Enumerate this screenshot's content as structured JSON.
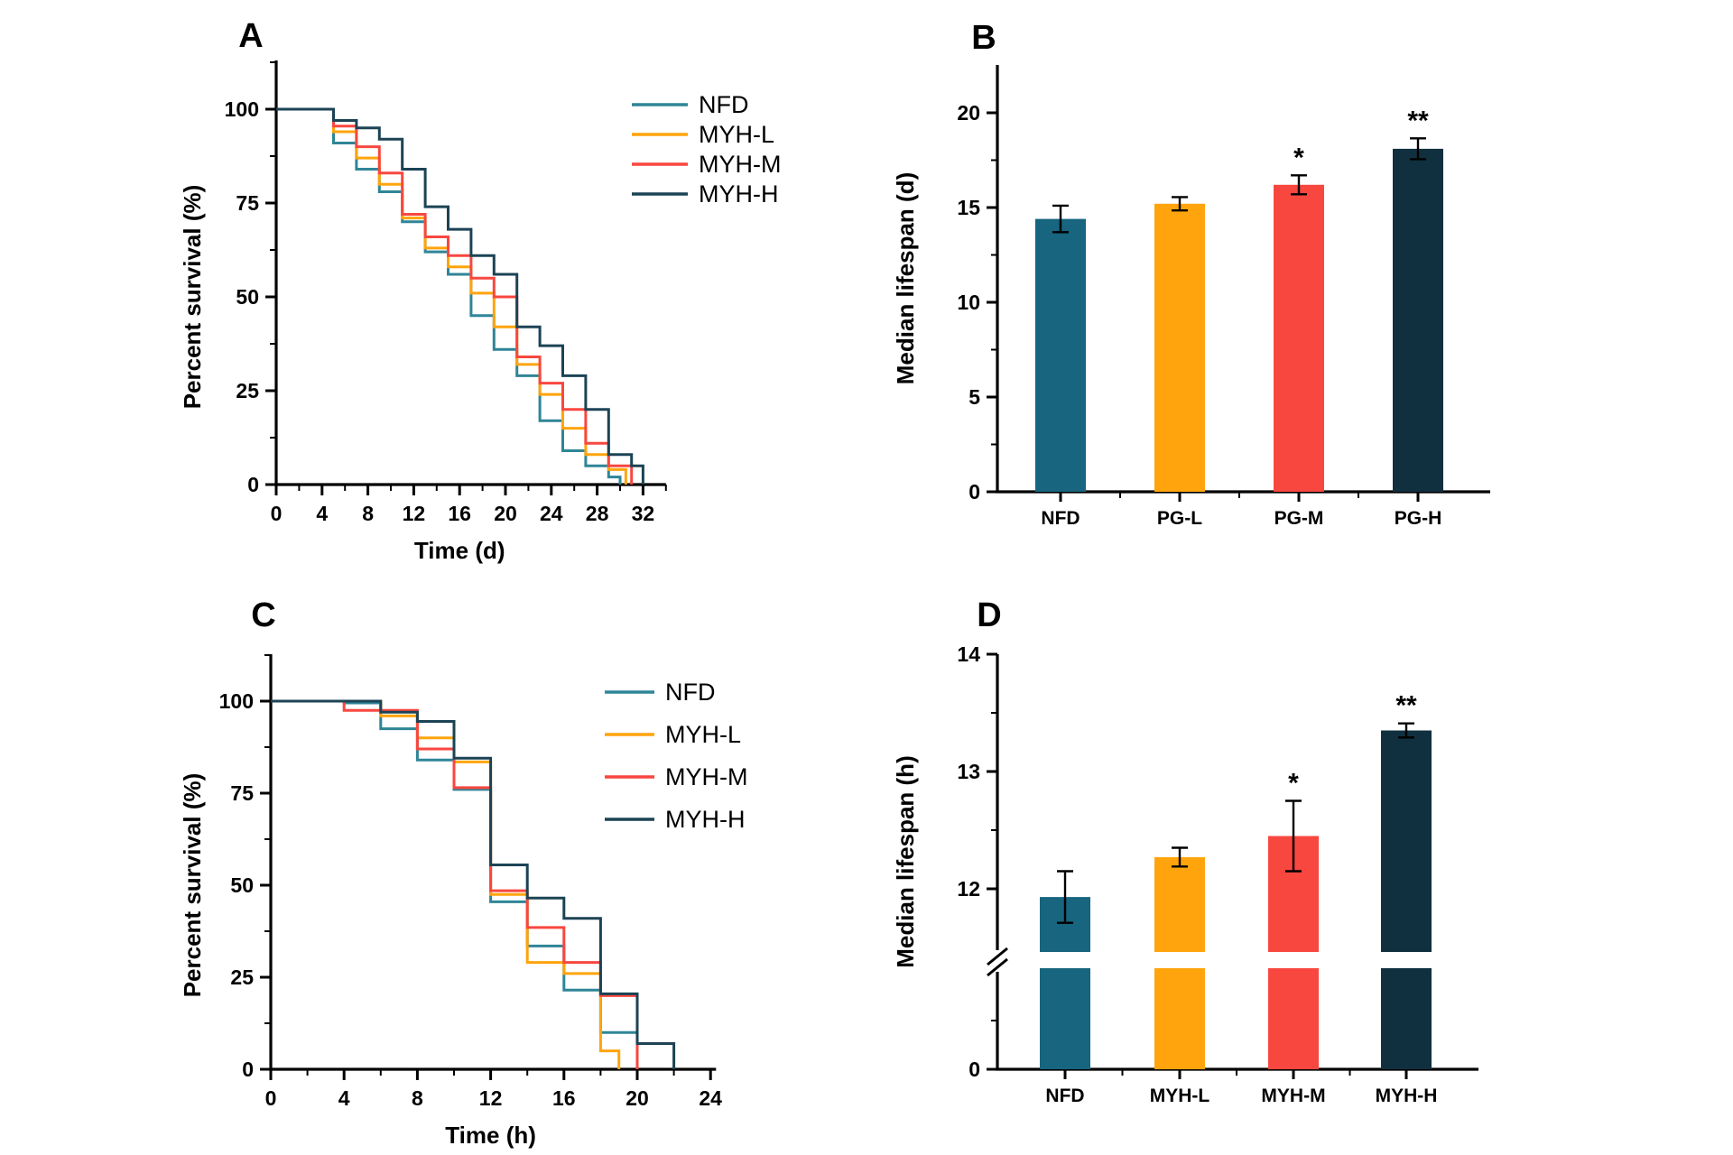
{
  "figure": {
    "background": "#ffffff",
    "text_color": "#000000",
    "panel_labels": [
      "A",
      "B",
      "C",
      "D"
    ]
  },
  "chart_data": [
    {
      "id": "A",
      "panel_label": "A",
      "type": "line",
      "subtype": "kaplan-meier-step-survival",
      "xlabel": "Time (d)",
      "ylabel": "Percent survival (%)",
      "xlim": [
        0,
        34
      ],
      "xticks": [
        0,
        4,
        8,
        12,
        16,
        20,
        24,
        28,
        32
      ],
      "x_minor_ticks": [
        2,
        6,
        10,
        14,
        18,
        22,
        26,
        30,
        34
      ],
      "ylim": [
        0,
        112
      ],
      "yticks": [
        0,
        25,
        50,
        75,
        100
      ],
      "y_minor_ticks": [
        12.5,
        37.5,
        62.5,
        87.5,
        112.5
      ],
      "grid": false,
      "legend_position": "upper-right",
      "series": [
        {
          "name": "NFD",
          "color": "#2F8597",
          "start": 100,
          "steps": [
            [
              5,
              91
            ],
            [
              7,
              84
            ],
            [
              9,
              78
            ],
            [
              11,
              70
            ],
            [
              13,
              62
            ],
            [
              15,
              56
            ],
            [
              17,
              45
            ],
            [
              19,
              36
            ],
            [
              21,
              29
            ],
            [
              23,
              17
            ],
            [
              25,
              9
            ],
            [
              27,
              5
            ],
            [
              29,
              2
            ],
            [
              30,
              0
            ]
          ]
        },
        {
          "name": "MYH-L",
          "color": "#FFA40C",
          "start": 100,
          "steps": [
            [
              5,
              94
            ],
            [
              7,
              87
            ],
            [
              9,
              80
            ],
            [
              11,
              71
            ],
            [
              13,
              63
            ],
            [
              15,
              58
            ],
            [
              17,
              51
            ],
            [
              19,
              42
            ],
            [
              21,
              32
            ],
            [
              23,
              24
            ],
            [
              25,
              15
            ],
            [
              27,
              8
            ],
            [
              29,
              4
            ],
            [
              30.5,
              0
            ]
          ]
        },
        {
          "name": "MYH-M",
          "color": "#F8473F",
          "start": 100,
          "steps": [
            [
              5,
              95.5
            ],
            [
              7,
              90
            ],
            [
              9,
              83
            ],
            [
              11,
              72
            ],
            [
              13,
              66
            ],
            [
              15,
              61
            ],
            [
              17,
              55
            ],
            [
              19,
              50
            ],
            [
              21,
              34
            ],
            [
              23,
              27
            ],
            [
              25,
              20
            ],
            [
              27,
              11
            ],
            [
              29,
              5
            ],
            [
              31,
              0
            ]
          ]
        },
        {
          "name": "MYH-H",
          "color": "#1C4355",
          "start": 100,
          "steps": [
            [
              5,
              97
            ],
            [
              7,
              95
            ],
            [
              9,
              92
            ],
            [
              11,
              84
            ],
            [
              13,
              74
            ],
            [
              15,
              68
            ],
            [
              17,
              61
            ],
            [
              19,
              56
            ],
            [
              21,
              42
            ],
            [
              23,
              37
            ],
            [
              25,
              29
            ],
            [
              27,
              20
            ],
            [
              29,
              8
            ],
            [
              31,
              5
            ],
            [
              32,
              0
            ]
          ]
        }
      ]
    },
    {
      "id": "B",
      "panel_label": "B",
      "type": "bar",
      "ylabel": "Median lifespan (d)",
      "ylim": [
        0,
        22.5
      ],
      "yticks": [
        0,
        5,
        10,
        15,
        20
      ],
      "y_minor_ticks": [
        2.5,
        7.5,
        12.5,
        17.5
      ],
      "categories": [
        "NFD",
        "PG-L",
        "PG-M",
        "PG-H"
      ],
      "values": [
        14.4,
        15.2,
        16.2,
        18.1
      ],
      "errors": [
        0.7,
        0.35,
        0.5,
        0.55
      ],
      "significance": [
        "",
        "",
        "*",
        "**"
      ],
      "bar_colors": [
        "#17657F",
        "#FFA40C",
        "#F8473F",
        "#11303F"
      ]
    },
    {
      "id": "C",
      "panel_label": "C",
      "type": "line",
      "subtype": "kaplan-meier-step-survival",
      "xlabel": "Time (h)",
      "ylabel": "Percent survival (%)",
      "xlim": [
        0,
        24.3
      ],
      "xticks": [
        0,
        4,
        8,
        12,
        16,
        20,
        24
      ],
      "x_minor_ticks": [
        2,
        6,
        10,
        14,
        18,
        22
      ],
      "ylim": [
        0,
        112
      ],
      "yticks": [
        0,
        25,
        50,
        75,
        100
      ],
      "y_minor_ticks": [
        12.5,
        37.5,
        62.5,
        87.5,
        112.5
      ],
      "grid": false,
      "legend_position": "upper-right",
      "series": [
        {
          "name": "NFD",
          "color": "#2F8597",
          "start": 100,
          "steps": [
            [
              4,
              99.5
            ],
            [
              6,
              92.5
            ],
            [
              8,
              84
            ],
            [
              10,
              76
            ],
            [
              12,
              45.5
            ],
            [
              14,
              33.5
            ],
            [
              16,
              21.5
            ],
            [
              18,
              10
            ],
            [
              20,
              0
            ]
          ]
        },
        {
          "name": "MYH-L",
          "color": "#FFA40C",
          "start": 100,
          "steps": [
            [
              6,
              96
            ],
            [
              8,
              90
            ],
            [
              10,
              83.5
            ],
            [
              12,
              47.5
            ],
            [
              14,
              29
            ],
            [
              16,
              26
            ],
            [
              18,
              5
            ],
            [
              19,
              0
            ]
          ]
        },
        {
          "name": "MYH-M",
          "color": "#F8473F",
          "start": 100,
          "steps": [
            [
              4,
              97.5
            ],
            [
              8,
              87
            ],
            [
              10,
              76.5
            ],
            [
              12,
              48.5
            ],
            [
              14,
              38.5
            ],
            [
              16,
              29
            ],
            [
              18,
              20
            ],
            [
              20,
              0
            ]
          ]
        },
        {
          "name": "MYH-H",
          "color": "#1C4355",
          "start": 100,
          "steps": [
            [
              6,
              97
            ],
            [
              8,
              94.5
            ],
            [
              10,
              84.5
            ],
            [
              12,
              55.5
            ],
            [
              14,
              46.5
            ],
            [
              16,
              41
            ],
            [
              18,
              20.5
            ],
            [
              20,
              7
            ],
            [
              22,
              0
            ]
          ]
        }
      ]
    },
    {
      "id": "D",
      "panel_label": "D",
      "type": "bar",
      "broken_axis": true,
      "ylabel": "Median lifespan (h)",
      "upper_range": [
        11.4,
        14
      ],
      "yticks": [
        12,
        13,
        14
      ],
      "y_minor_ticks": [
        12.5,
        13.5
      ],
      "baseline_tick_label": "0",
      "categories": [
        "NFD",
        "MYH-L",
        "MYH-M",
        "MYH-H"
      ],
      "values": [
        11.93,
        12.27,
        12.45,
        13.35
      ],
      "errors": [
        0.22,
        0.08,
        0.3,
        0.06
      ],
      "significance": [
        "",
        "",
        "*",
        "**"
      ],
      "bar_colors": [
        "#17657F",
        "#FFA40C",
        "#F8473F",
        "#11303F"
      ]
    }
  ]
}
